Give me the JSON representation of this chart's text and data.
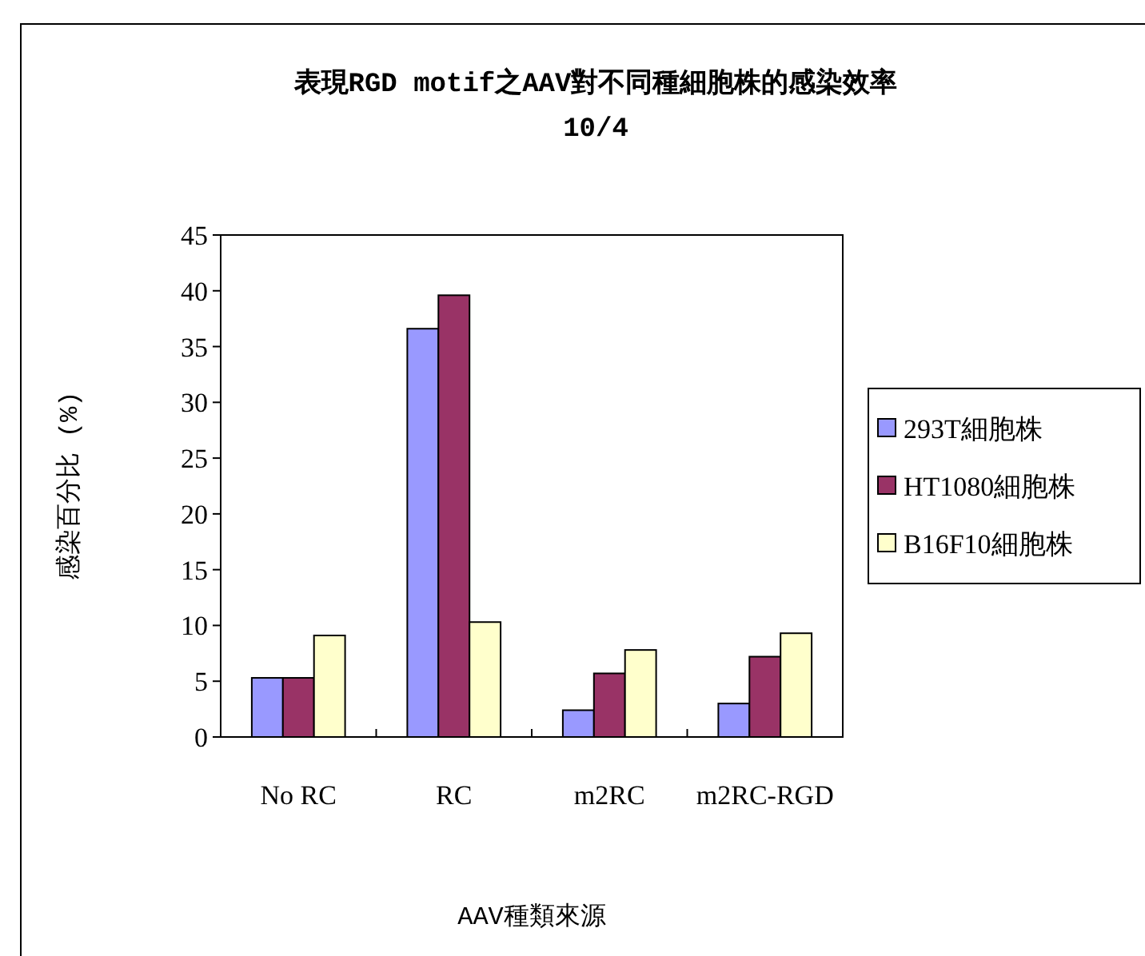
{
  "chart_data": {
    "type": "bar",
    "title": "表現RGD motif之AAV對不同種細胞株的感染效率\n10/4",
    "xlabel": "AAV種類來源",
    "ylabel": "感染百分比 (%)",
    "categories": [
      "No RC",
      "RC",
      "m2RC",
      "m2RC-RGD"
    ],
    "series": [
      {
        "name": "293T細胞株",
        "color": "#9999ff",
        "values": [
          5.3,
          36.6,
          2.4,
          3.0
        ]
      },
      {
        "name": "HT1080細胞株",
        "color": "#993366",
        "values": [
          5.3,
          39.6,
          5.7,
          7.2
        ]
      },
      {
        "name": "B16F10細胞株",
        "color": "#ffffcc",
        "values": [
          9.1,
          10.3,
          7.8,
          9.3
        ]
      }
    ],
    "ylim": [
      0,
      45
    ],
    "yticks": [
      0,
      5,
      10,
      15,
      20,
      25,
      30,
      35,
      40,
      45
    ],
    "grid": false,
    "legend": "right"
  }
}
